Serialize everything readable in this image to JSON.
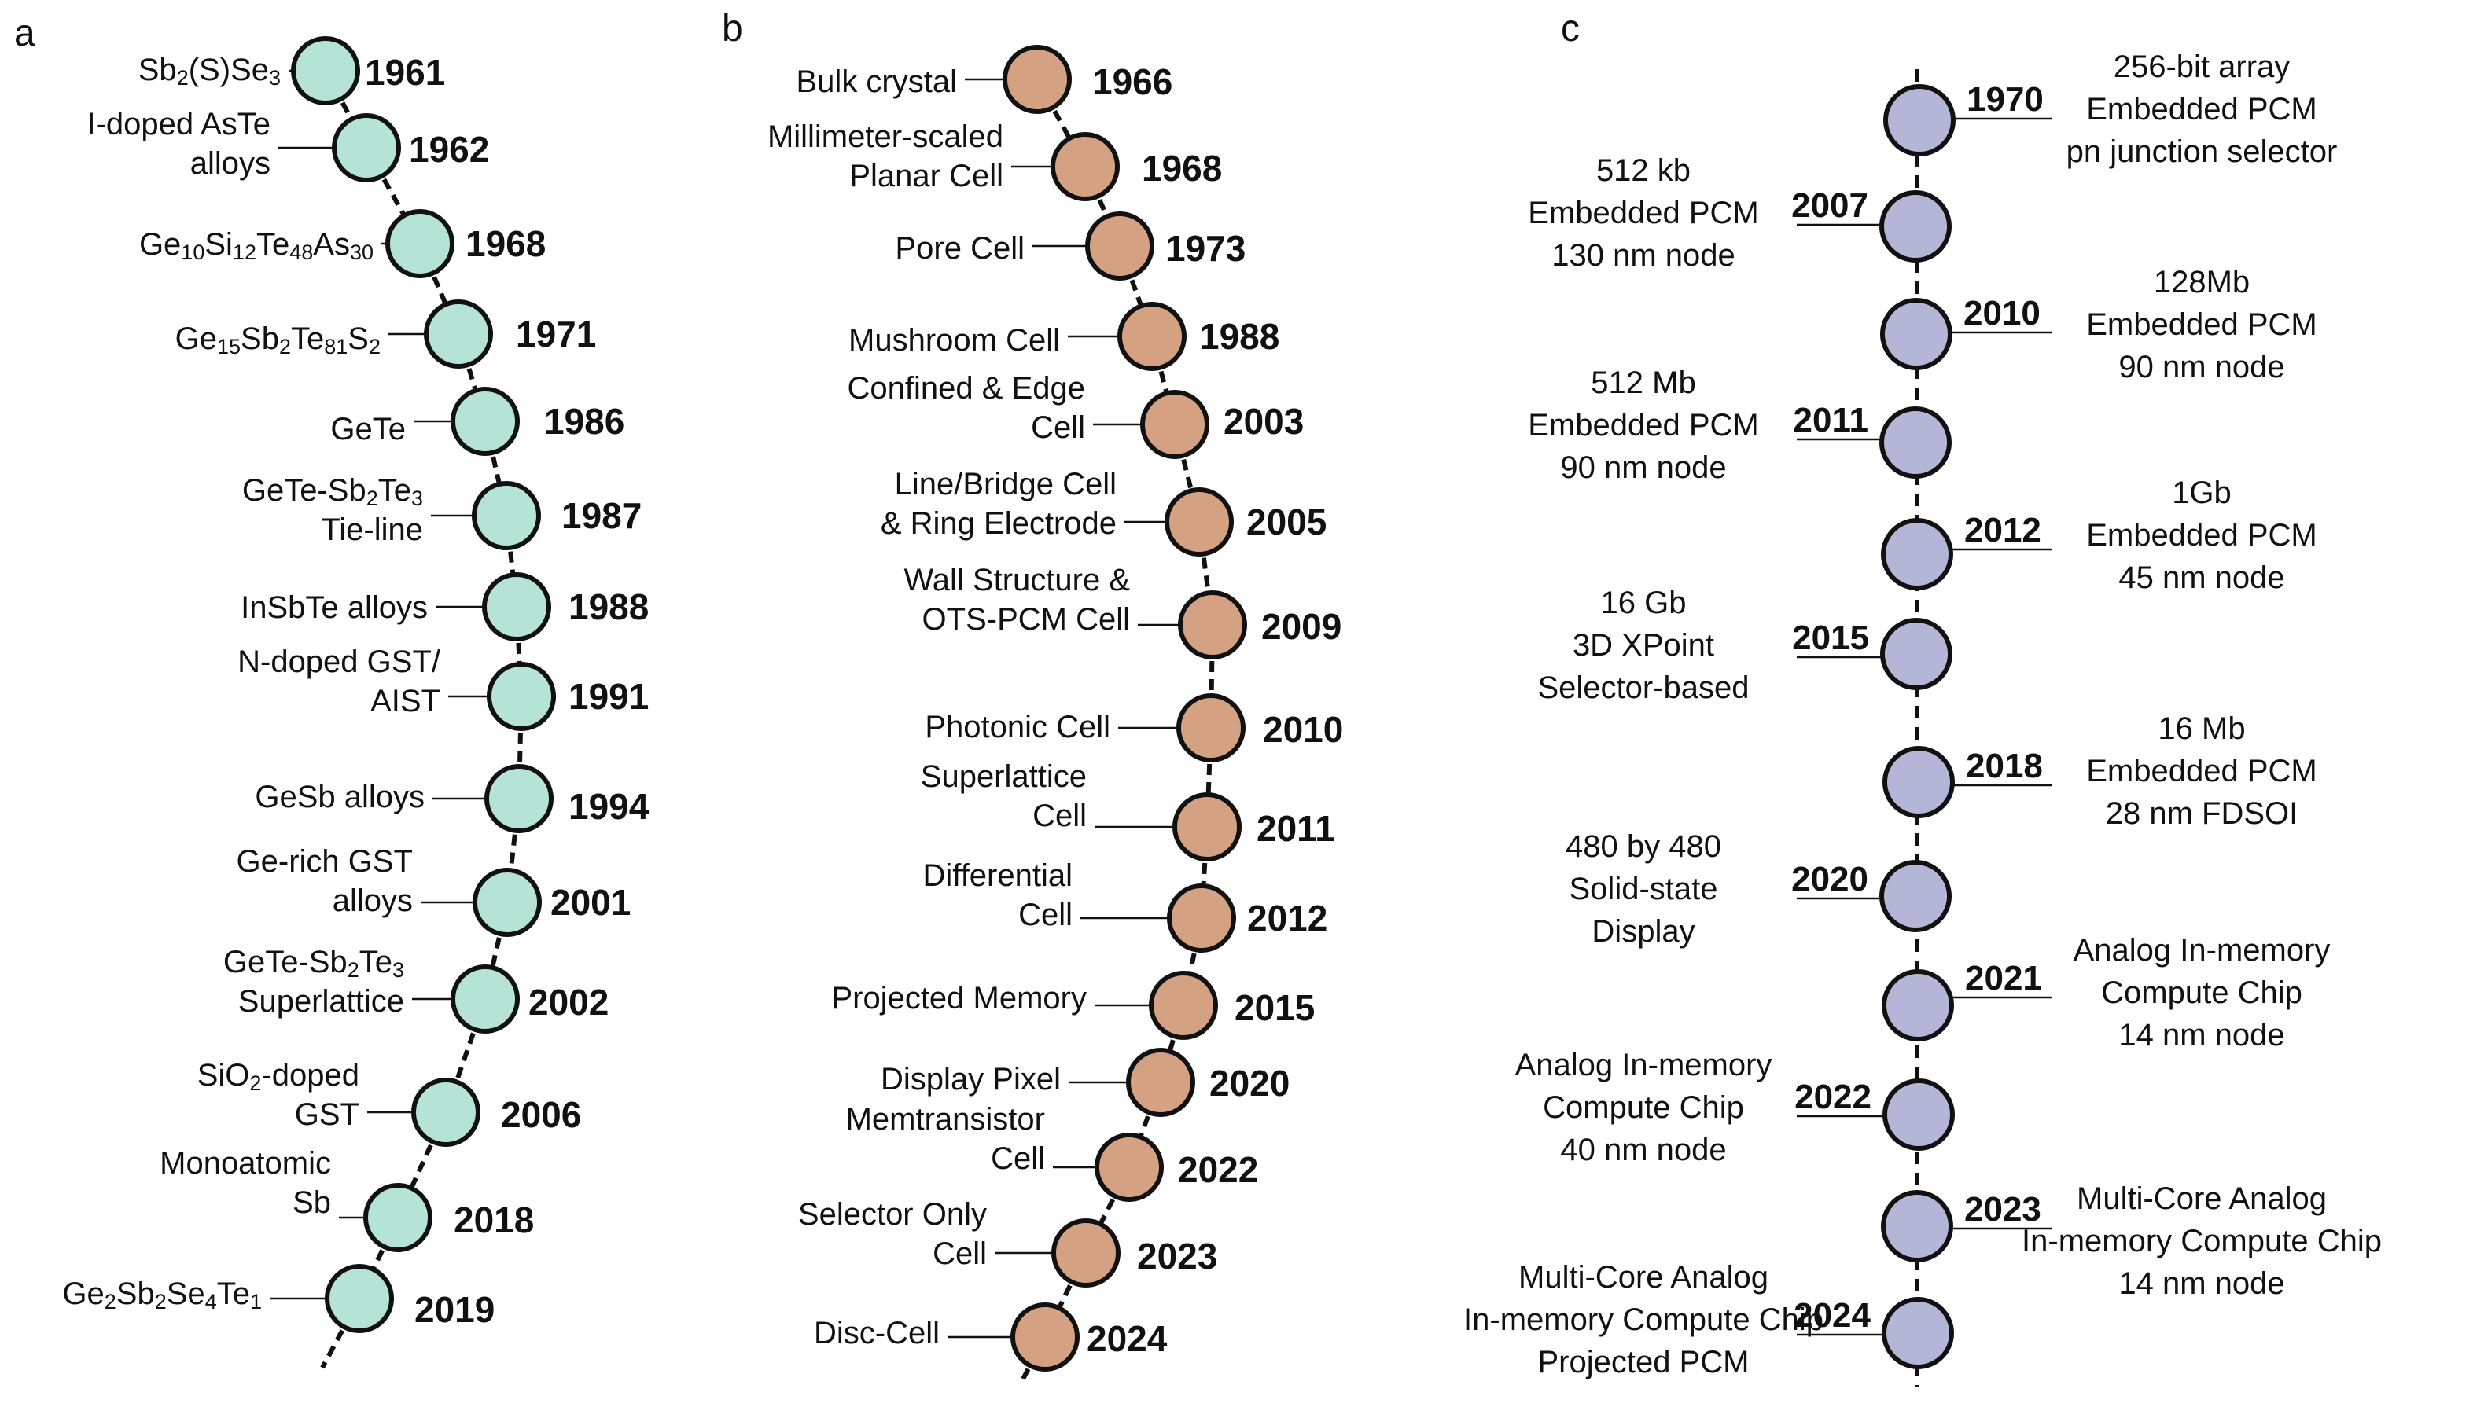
{
  "panels": [
    {
      "id": "a",
      "label": "a",
      "colors": {
        "fill": "#b5e3d6",
        "stroke": "#111111"
      },
      "events": [
        {
          "year": "1961",
          "text": [
            [
              [
                "Sb"
              ],
              [
                "2",
                "sub"
              ],
              [
                "(S)Se"
              ],
              [
                "3",
                "sub"
              ]
            ]
          ]
        },
        {
          "year": "1962",
          "text": [
            [
              [
                "I-doped AsTe"
              ]
            ],
            [
              [
                "alloys"
              ]
            ]
          ]
        },
        {
          "year": "1968",
          "text": [
            [
              [
                "Ge"
              ],
              [
                "10",
                "sub"
              ],
              [
                "Si"
              ],
              [
                "12",
                "sub"
              ],
              [
                "Te"
              ],
              [
                "48",
                "sub"
              ],
              [
                "As"
              ],
              [
                "30",
                "sub"
              ]
            ]
          ]
        },
        {
          "year": "1971",
          "text": [
            [
              [
                "Ge"
              ],
              [
                "15",
                "sub"
              ],
              [
                "Sb"
              ],
              [
                "2",
                "sub"
              ],
              [
                "Te"
              ],
              [
                "81",
                "sub"
              ],
              [
                "S"
              ],
              [
                "2",
                "sub"
              ]
            ]
          ]
        },
        {
          "year": "1986",
          "text": [
            [
              [
                "GeTe"
              ]
            ]
          ]
        },
        {
          "year": "1987",
          "text": [
            [
              [
                "GeTe-Sb"
              ],
              [
                "2",
                "sub"
              ],
              [
                "Te"
              ],
              [
                "3",
                "sub"
              ]
            ],
            [
              [
                "Tie-line"
              ]
            ]
          ]
        },
        {
          "year": "1988",
          "text": [
            [
              [
                "InSbTe alloys"
              ]
            ]
          ]
        },
        {
          "year": "1991",
          "text": [
            [
              [
                "N-doped GST/"
              ]
            ],
            [
              [
                "AIST"
              ]
            ]
          ]
        },
        {
          "year": "1994",
          "text": [
            [
              [
                "GeSb alloys"
              ]
            ]
          ]
        },
        {
          "year": "2001",
          "text": [
            [
              [
                "Ge-rich GST"
              ]
            ],
            [
              [
                "alloys"
              ]
            ]
          ]
        },
        {
          "year": "2002",
          "text": [
            [
              [
                "GeTe-Sb"
              ],
              [
                "2",
                "sub"
              ],
              [
                "Te"
              ],
              [
                "3",
                "sub"
              ]
            ],
            [
              [
                "Superlattice"
              ]
            ]
          ]
        },
        {
          "year": "2006",
          "text": [
            [
              [
                "SiO"
              ],
              [
                "2",
                "sub"
              ],
              [
                "-doped"
              ]
            ],
            [
              [
                "GST"
              ]
            ]
          ]
        },
        {
          "year": "2018",
          "text": [
            [
              [
                "Monoatomic"
              ]
            ],
            [
              [
                "Sb"
              ]
            ]
          ]
        },
        {
          "year": "2019",
          "text": [
            [
              [
                "Ge"
              ],
              [
                "2",
                "sub"
              ],
              [
                "Sb"
              ],
              [
                "2",
                "sub"
              ],
              [
                "Se"
              ],
              [
                "4",
                "sub"
              ],
              [
                "Te"
              ],
              [
                "1",
                "sub"
              ]
            ]
          ]
        }
      ]
    },
    {
      "id": "b",
      "label": "b",
      "colors": {
        "fill": "#d4a182",
        "stroke": "#111111"
      },
      "events": [
        {
          "year": "1966",
          "text": [
            [
              [
                "Bulk crystal"
              ]
            ]
          ]
        },
        {
          "year": "1968",
          "text": [
            [
              [
                "Millimeter-scaled"
              ]
            ],
            [
              [
                "Planar Cell"
              ]
            ]
          ]
        },
        {
          "year": "1973",
          "text": [
            [
              [
                "Pore Cell"
              ]
            ]
          ]
        },
        {
          "year": "1988",
          "text": [
            [
              [
                "Mushroom Cell"
              ]
            ]
          ]
        },
        {
          "year": "2003",
          "text": [
            [
              [
                "Confined & Edge"
              ]
            ],
            [
              [
                "Cell"
              ]
            ]
          ]
        },
        {
          "year": "2005",
          "text": [
            [
              [
                "Line/Bridge Cell"
              ]
            ],
            [
              [
                "& Ring Electrode"
              ]
            ]
          ]
        },
        {
          "year": "2009",
          "text": [
            [
              [
                "Wall Structure &"
              ]
            ],
            [
              [
                "OTS-PCM Cell"
              ]
            ]
          ]
        },
        {
          "year": "2010",
          "text": [
            [
              [
                "Photonic Cell"
              ]
            ]
          ]
        },
        {
          "year": "2011",
          "text": [
            [
              [
                "Superlattice"
              ]
            ],
            [
              [
                "Cell"
              ]
            ]
          ]
        },
        {
          "year": "2012",
          "text": [
            [
              [
                "Differential"
              ]
            ],
            [
              [
                "Cell"
              ]
            ]
          ]
        },
        {
          "year": "2015",
          "text": [
            [
              [
                "Projected Memory"
              ]
            ]
          ]
        },
        {
          "year": "2020",
          "text": [
            [
              [
                "Display Pixel"
              ]
            ]
          ]
        },
        {
          "year": "2022",
          "text": [
            [
              [
                "Memtransistor"
              ]
            ],
            [
              [
                "Cell"
              ]
            ]
          ]
        },
        {
          "year": "2023",
          "text": [
            [
              [
                "Selector Only"
              ]
            ],
            [
              [
                "Cell"
              ]
            ]
          ]
        },
        {
          "year": "2024",
          "text": [
            [
              [
                "Disc-Cell"
              ]
            ]
          ]
        }
      ]
    },
    {
      "id": "c",
      "label": "c",
      "colors": {
        "fill": "#b3b6d6",
        "stroke": "#111111"
      },
      "events": [
        {
          "year": "1970",
          "side": "right",
          "text": [
            "256-bit array",
            "Embedded PCM",
            "pn junction selector"
          ]
        },
        {
          "year": "2007",
          "side": "left",
          "text": [
            "512 kb",
            "Embedded PCM",
            "130 nm node"
          ]
        },
        {
          "year": "2010",
          "side": "right",
          "text": [
            "128Mb",
            "Embedded PCM",
            "90 nm node"
          ]
        },
        {
          "year": "2011",
          "side": "left",
          "text": [
            "512 Mb",
            "Embedded PCM",
            "90 nm node"
          ]
        },
        {
          "year": "2012",
          "side": "right",
          "text": [
            "1Gb",
            "Embedded PCM",
            "45 nm node"
          ]
        },
        {
          "year": "2015",
          "side": "left",
          "text": [
            "16 Gb",
            "3D XPoint",
            "Selector-based"
          ]
        },
        {
          "year": "2018",
          "side": "right",
          "text": [
            "16 Mb",
            "Embedded PCM",
            "28 nm FDSOI"
          ]
        },
        {
          "year": "2020",
          "side": "left",
          "text": [
            "480 by 480",
            "Solid-state",
            "Display"
          ]
        },
        {
          "year": "2021",
          "side": "right",
          "text": [
            "Analog In-memory",
            "Compute Chip",
            "14 nm node"
          ]
        },
        {
          "year": "2022",
          "side": "left",
          "text": [
            "Analog In-memory",
            "Compute  Chip",
            "40 nm node"
          ]
        },
        {
          "year": "2023",
          "side": "right",
          "text": [
            "Multi-Core Analog",
            "In-memory Compute  Chip",
            "14 nm node"
          ]
        },
        {
          "year": "2024",
          "side": "left",
          "text": [
            "Multi-Core Analog",
            "In-memory Compute  Chip",
            "Projected PCM"
          ]
        }
      ]
    }
  ]
}
